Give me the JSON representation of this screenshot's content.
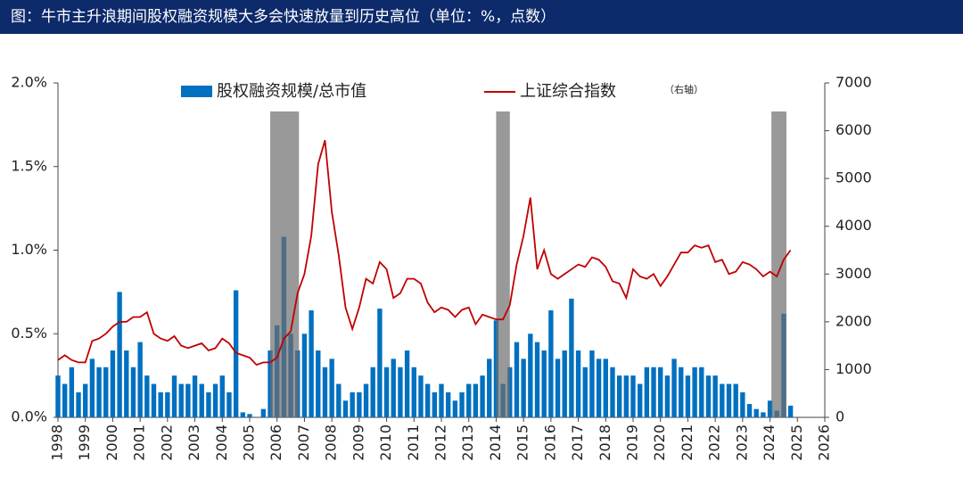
{
  "chart_data": {
    "type": "combo",
    "title": "图：牛市主升浪期间股权融资规模大多会快速放量到历史高位（单位：%，点数）",
    "annotation": "（右轴）",
    "x": [
      1998,
      1998.25,
      1998.5,
      1998.75,
      1999,
      1999.25,
      1999.5,
      1999.75,
      2000,
      2000.25,
      2000.5,
      2000.75,
      2001,
      2001.25,
      2001.5,
      2001.75,
      2002,
      2002.25,
      2002.5,
      2002.75,
      2003,
      2003.25,
      2003.5,
      2003.75,
      2004,
      2004.25,
      2004.5,
      2004.75,
      2005,
      2005.25,
      2005.5,
      2005.75,
      2006,
      2006.25,
      2006.5,
      2006.75,
      2007,
      2007.25,
      2007.5,
      2007.75,
      2008,
      2008.25,
      2008.5,
      2008.75,
      2009,
      2009.25,
      2009.5,
      2009.75,
      2010,
      2010.25,
      2010.5,
      2010.75,
      2011,
      2011.25,
      2011.5,
      2011.75,
      2012,
      2012.25,
      2012.5,
      2012.75,
      2013,
      2013.25,
      2013.5,
      2013.75,
      2014,
      2014.25,
      2014.5,
      2014.75,
      2015,
      2015.25,
      2015.5,
      2015.75,
      2016,
      2016.25,
      2016.5,
      2016.75,
      2017,
      2017.25,
      2017.5,
      2017.75,
      2018,
      2018.25,
      2018.5,
      2018.75,
      2019,
      2019.25,
      2019.5,
      2019.75,
      2020,
      2020.25,
      2020.5,
      2020.75,
      2021,
      2021.25,
      2021.5,
      2021.75,
      2022,
      2022.25,
      2022.5,
      2022.75,
      2023,
      2023.25,
      2023.5,
      2023.75,
      2024,
      2024.25,
      2024.5,
      2024.75
    ],
    "series": [
      {
        "name": "股权融资规模/总市值",
        "type": "bar",
        "color": "#0070c0",
        "values": [
          0.25,
          0.2,
          0.3,
          0.15,
          0.2,
          0.35,
          0.3,
          0.3,
          0.4,
          0.75,
          0.4,
          0.3,
          0.45,
          0.25,
          0.2,
          0.15,
          0.15,
          0.25,
          0.2,
          0.2,
          0.25,
          0.2,
          0.15,
          0.2,
          0.25,
          0.15,
          0.76,
          0.03,
          0.02,
          0.0,
          0.05,
          0.4,
          0.55,
          1.08,
          0.5,
          0.4,
          0.5,
          0.64,
          0.4,
          0.3,
          0.35,
          0.2,
          0.1,
          0.15,
          0.15,
          0.2,
          0.3,
          0.65,
          0.3,
          0.35,
          0.3,
          0.4,
          0.3,
          0.25,
          0.2,
          0.15,
          0.2,
          0.15,
          0.1,
          0.15,
          0.2,
          0.2,
          0.25,
          0.35,
          0.58,
          0.2,
          0.3,
          0.45,
          0.35,
          0.5,
          0.45,
          0.4,
          0.64,
          0.35,
          0.4,
          0.71,
          0.4,
          0.3,
          0.4,
          0.35,
          0.35,
          0.3,
          0.25,
          0.25,
          0.25,
          0.2,
          0.3,
          0.3,
          0.3,
          0.25,
          0.35,
          0.3,
          0.25,
          0.3,
          0.3,
          0.25,
          0.25,
          0.2,
          0.2,
          0.2,
          0.15,
          0.08,
          0.05,
          0.03,
          0.1,
          0.04,
          0.62,
          0.07
        ]
      },
      {
        "name": "上证综合指数",
        "type": "line",
        "axis": "y2",
        "color": "#c00000",
        "values": [
          1200,
          1300,
          1200,
          1150,
          1150,
          1600,
          1650,
          1750,
          1900,
          2000,
          2000,
          2100,
          2100,
          2200,
          1750,
          1650,
          1600,
          1700,
          1500,
          1450,
          1500,
          1550,
          1400,
          1450,
          1650,
          1550,
          1350,
          1300,
          1250,
          1100,
          1150,
          1150,
          1250,
          1650,
          1800,
          2600,
          3000,
          3800,
          5300,
          5800,
          4300,
          3400,
          2300,
          1850,
          2300,
          2900,
          2800,
          3250,
          3100,
          2500,
          2600,
          2900,
          2900,
          2800,
          2400,
          2200,
          2300,
          2250,
          2100,
          2250,
          2300,
          1950,
          2150,
          2100,
          2050,
          2050,
          2350,
          3200,
          3800,
          4600,
          3100,
          3500,
          3000,
          2900,
          3000,
          3100,
          3200,
          3150,
          3350,
          3300,
          3150,
          2850,
          2800,
          2500,
          3100,
          2950,
          2900,
          3000,
          2750,
          2950,
          3200,
          3450,
          3450,
          3600,
          3550,
          3600,
          3250,
          3300,
          3000,
          3050,
          3250,
          3200,
          3100,
          2950,
          3050,
          2950,
          3300,
          3500
        ]
      }
    ],
    "shaded_periods": [
      [
        2005.75,
        2006.8
      ],
      [
        2014.0,
        2014.5
      ],
      [
        2024.05,
        2024.6
      ]
    ],
    "xlim": [
      1998,
      2026
    ],
    "xticks": [
      1998,
      1999,
      2000,
      2001,
      2002,
      2003,
      2004,
      2005,
      2006,
      2007,
      2008,
      2009,
      2010,
      2011,
      2012,
      2013,
      2014,
      2015,
      2016,
      2017,
      2018,
      2019,
      2020,
      2021,
      2022,
      2023,
      2024,
      2025,
      2026
    ],
    "ylim": [
      0,
      2
    ],
    "yticks": [
      {
        "value": 0,
        "label": "0.0%"
      },
      {
        "value": 0.5,
        "label": "0.5%"
      },
      {
        "value": 1,
        "label": "1.0%"
      },
      {
        "value": 1.5,
        "label": "1.5%"
      },
      {
        "value": 2,
        "label": "2.0%"
      }
    ],
    "y2lim": [
      0,
      7000
    ],
    "y2ticks": [
      0,
      1000,
      2000,
      3000,
      4000,
      5000,
      6000,
      7000
    ]
  }
}
